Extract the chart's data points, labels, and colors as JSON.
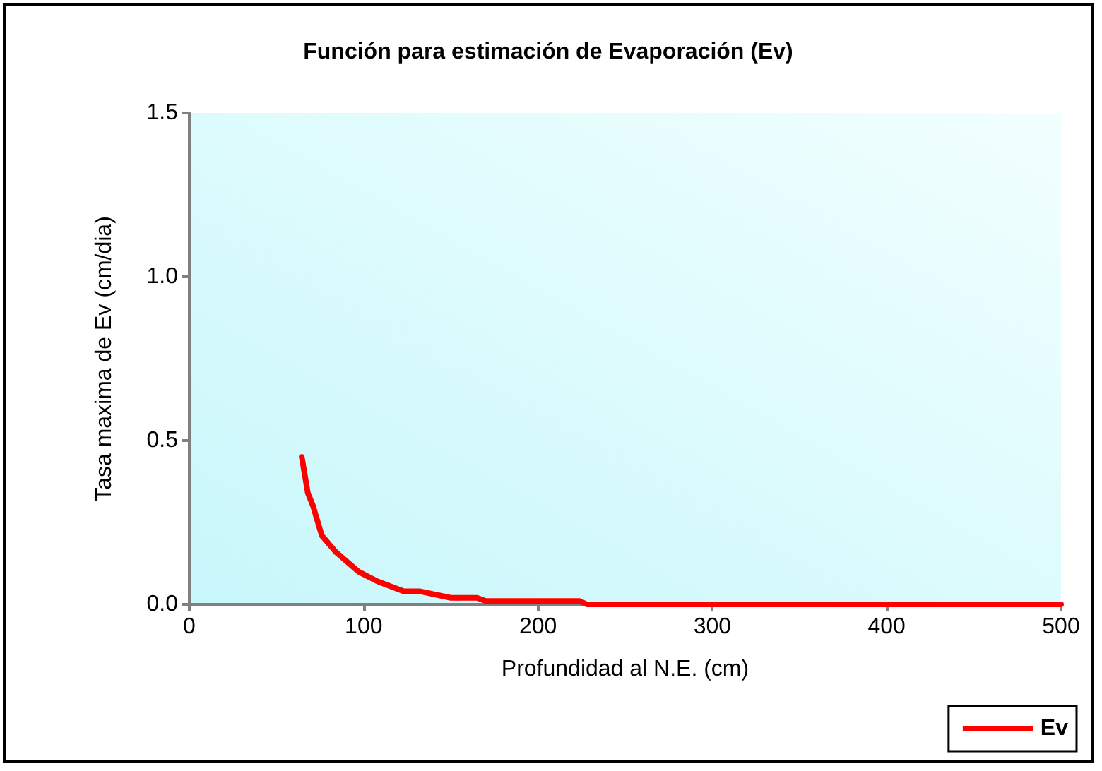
{
  "chart_data": {
    "type": "line",
    "title": "Función para estimación de Evaporación (Ev)",
    "xlabel": "Profundidad al N.E. (cm)",
    "ylabel": "Tasa maxima de Ev (cm/dia)",
    "x": [
      64.5,
      68,
      71,
      76,
      84,
      97,
      108,
      123,
      132,
      150,
      165,
      170,
      224,
      228,
      300,
      400,
      500
    ],
    "series": [
      {
        "name": "Ev",
        "color": "#ff0000",
        "values": [
          0.45,
          0.34,
          0.3,
          0.21,
          0.16,
          0.1,
          0.07,
          0.04,
          0.04,
          0.02,
          0.02,
          0.01,
          0.01,
          0,
          0,
          0,
          0
        ]
      }
    ],
    "xlim": [
      0,
      500
    ],
    "xticks": [
      0,
      100,
      200,
      300,
      400,
      500
    ],
    "ylim": [
      0,
      1.5
    ],
    "yticks": [
      {
        "value": 0,
        "label": "0.0"
      },
      {
        "value": 0.5,
        "label": "0.5"
      },
      {
        "value": 1,
        "label": "1.0"
      },
      {
        "value": 1.5,
        "label": "1.5"
      }
    ],
    "grid": false,
    "legend": "bottom right",
    "marker": "none",
    "line_style": "solid"
  }
}
